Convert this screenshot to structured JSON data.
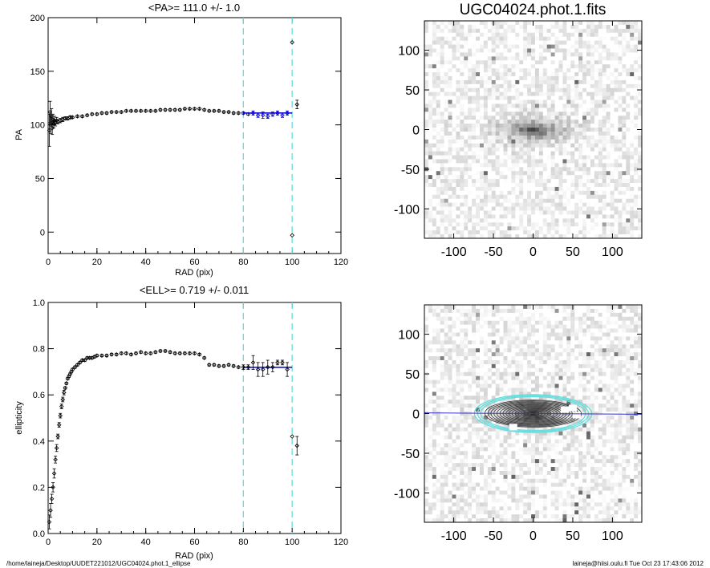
{
  "footer": {
    "path": "/home/laineja/Desktop/UUDET221012/UGC04024.phot.1_ellipse",
    "stamp": "laineja@hiisi.oulu.fi  Tue Oct 23 17:43:06 2012"
  },
  "chart_data": [
    {
      "id": "pa",
      "type": "scatter",
      "title": "<PA>= 111.0 +/-   1.0",
      "xlabel": "RAD (pix)",
      "ylabel": "PA",
      "xlim": [
        0,
        120
      ],
      "ylim": [
        -20,
        200
      ],
      "xticks": [
        "0",
        "20",
        "40",
        "60",
        "80",
        "100",
        "120"
      ],
      "yticks": [
        "0",
        "50",
        "100",
        "150",
        "200"
      ],
      "vlines": [
        80,
        100
      ],
      "fit": {
        "x": [
          80,
          100
        ],
        "y": 111.0,
        "color": "#0000cc"
      },
      "series": [
        {
          "x": [
            0.5,
            0.8,
            1.1,
            1.4,
            1.7,
            2.0,
            2.3,
            2.6,
            3.0,
            3.5,
            4,
            5,
            6,
            7,
            8,
            9,
            10,
            12,
            14,
            16,
            18,
            20,
            22,
            24,
            26,
            28,
            30,
            32,
            34,
            36,
            38,
            40,
            42,
            44,
            46,
            48,
            50,
            52,
            54,
            56,
            58,
            60,
            62,
            64,
            66,
            68,
            70,
            72,
            74,
            76,
            78
          ],
          "y": [
            95,
            112,
            100,
            108,
            97,
            105,
            101,
            104,
            102,
            104,
            103,
            104,
            105,
            106,
            106,
            107,
            107,
            108,
            108,
            109,
            110,
            110,
            111,
            111,
            112,
            112,
            112,
            113,
            113,
            113,
            113,
            113,
            113,
            113,
            114,
            114,
            114,
            114,
            114,
            115,
            115,
            115,
            115,
            114,
            113,
            113,
            113,
            112,
            112,
            111,
            111
          ],
          "err": [
            15,
            10,
            8,
            7,
            6,
            5,
            4,
            4,
            3,
            3,
            2,
            2,
            2,
            1.5,
            1.5,
            1.5,
            1,
            1,
            1,
            1,
            1,
            1,
            1,
            1,
            1,
            1,
            1,
            1,
            1,
            1,
            1,
            1,
            1,
            1,
            1,
            1,
            1,
            1,
            1,
            1,
            1,
            1,
            1,
            1,
            1,
            1,
            1,
            1,
            1,
            1,
            1
          ],
          "color": "#000000"
        },
        {
          "x": [
            80,
            82,
            84,
            86,
            88,
            90,
            92,
            94,
            96,
            98
          ],
          "y": [
            111,
            110,
            111,
            109,
            109,
            108,
            110,
            111,
            109,
            111
          ],
          "err": [
            1,
            1,
            2,
            2,
            3,
            2,
            2,
            2,
            2,
            2
          ],
          "color": "#0000cc"
        },
        {
          "x": [
            100,
            100,
            102
          ],
          "y": 177,
          "note": "outliers",
          "ys": [
            177,
            -3,
            119
          ],
          "err": [
            0,
            0,
            4
          ],
          "color": "#000000"
        }
      ]
    },
    {
      "id": "ell",
      "type": "scatter",
      "title": "<ELL>= 0.719 +/-  0.011",
      "xlabel": "RAD (pix)",
      "ylabel": "ellipticity",
      "xlim": [
        0,
        120
      ],
      "ylim": [
        0,
        1
      ],
      "xticks": [
        "0",
        "20",
        "40",
        "60",
        "80",
        "100",
        "120"
      ],
      "yticks": [
        "0.0",
        "0.2",
        "0.4",
        "0.6",
        "0.8",
        "1.0"
      ],
      "vlines": [
        80,
        100
      ],
      "fit": {
        "x": [
          80,
          100
        ],
        "y": 0.719,
        "color": "#0000cc"
      },
      "series": [
        {
          "x": [
            0.5,
            1,
            1.5,
            2,
            2.5,
            3,
            3.5,
            4,
            4.5,
            5,
            5.5,
            6,
            6.5,
            7,
            7.5,
            8,
            8.5,
            9,
            9.5,
            10,
            11,
            12,
            13,
            14,
            15,
            16,
            17,
            18,
            19,
            20,
            22,
            24,
            26,
            28,
            30,
            32,
            34,
            36,
            38,
            40,
            42,
            44,
            46,
            48,
            50,
            52,
            54,
            56,
            58,
            60,
            62,
            64,
            66,
            68,
            70,
            72,
            74,
            76,
            78
          ],
          "y": [
            0.05,
            0.1,
            0.15,
            0.2,
            0.26,
            0.32,
            0.37,
            0.42,
            0.47,
            0.51,
            0.55,
            0.58,
            0.61,
            0.63,
            0.65,
            0.67,
            0.68,
            0.69,
            0.7,
            0.71,
            0.72,
            0.73,
            0.74,
            0.75,
            0.75,
            0.76,
            0.76,
            0.76,
            0.765,
            0.77,
            0.77,
            0.77,
            0.775,
            0.775,
            0.78,
            0.78,
            0.775,
            0.78,
            0.785,
            0.78,
            0.78,
            0.785,
            0.79,
            0.79,
            0.785,
            0.78,
            0.78,
            0.78,
            0.78,
            0.78,
            0.775,
            0.76,
            0.73,
            0.73,
            0.725,
            0.725,
            0.73,
            0.725,
            0.72
          ],
          "err": [
            0.03,
            0.03,
            0.02,
            0.02,
            0.02,
            0.015,
            0.015,
            0.01,
            0.01,
            0.01,
            0.01,
            0.01,
            0.01,
            0.005,
            0.005,
            0.005,
            0.005,
            0.005,
            0.005,
            0.005,
            0.005,
            0.005,
            0.005,
            0.005,
            0.005,
            0.005,
            0.005,
            0.005,
            0.005,
            0.005,
            0.005,
            0.005,
            0.005,
            0.005,
            0.005,
            0.005,
            0.005,
            0.005,
            0.005,
            0.005,
            0.005,
            0.005,
            0.005,
            0.005,
            0.005,
            0.005,
            0.005,
            0.005,
            0.005,
            0.005,
            0.005,
            0.005,
            0.005,
            0.005,
            0.005,
            0.005,
            0.005,
            0.005,
            0.005
          ],
          "color": "#000000"
        },
        {
          "x": [
            80,
            82,
            84,
            86,
            88,
            90,
            92,
            94,
            96,
            98
          ],
          "y": [
            0.72,
            0.72,
            0.74,
            0.71,
            0.71,
            0.72,
            0.72,
            0.74,
            0.74,
            0.71
          ],
          "err": [
            0.01,
            0.01,
            0.03,
            0.03,
            0.03,
            0.03,
            0.02,
            0.01,
            0.01,
            0.03
          ],
          "color": "#000000"
        },
        {
          "x": [
            100,
            102
          ],
          "y": [
            0.42,
            0.38
          ],
          "err": [
            0,
            0.04
          ],
          "color": "#000000"
        }
      ]
    },
    {
      "id": "img",
      "type": "heatmap",
      "title": "UGC04024.phot.1.fits",
      "xlim": [
        -137,
        137
      ],
      "ylim": [
        -137,
        137
      ],
      "xticks": [
        "-100",
        "-50",
        "0",
        "50",
        "100"
      ],
      "yticks": [
        "-100",
        "-50",
        "0",
        "50",
        "100"
      ],
      "galaxy": {
        "pa_deg": 111.0,
        "ell": 0.719,
        "sma": 70
      }
    },
    {
      "id": "ovl",
      "type": "heatmap",
      "xlim": [
        -137,
        137
      ],
      "ylim": [
        -137,
        137
      ],
      "xticks": [
        "-100",
        "-50",
        "0",
        "50",
        "100"
      ],
      "yticks": [
        "-100",
        "-50",
        "0",
        "50",
        "100"
      ],
      "line_color": "#3333cc",
      "contour_color": "#333333",
      "ellipse_color": "#66dddd"
    }
  ]
}
